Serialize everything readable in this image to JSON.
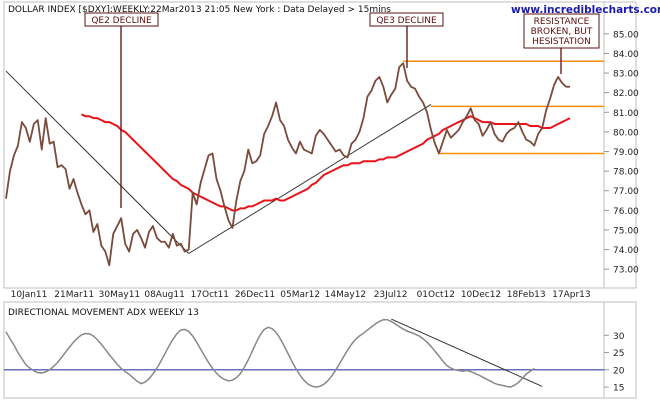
{
  "header": {
    "title": "DOLLAR INDEX [$DXY]:WEEKLY:22Mar2013 21:05 New York : Data Delayed > 15mins",
    "brand": "www.incrediblecharts.com"
  },
  "lower_panel": {
    "title": "DIRECTIONAL MOVEMENT ADX WEEKLY 13"
  },
  "annotations": {
    "qe2": "QE2 DECLINE",
    "qe3": "QE3 DECLINE",
    "resistance": [
      "RESISTANCE",
      "BROKEN, BUT",
      "HESISTATION"
    ]
  },
  "colors": {
    "price": "#7a4a3a",
    "ma": "#e8141a",
    "trendline": "#333333",
    "horizontal": "#ff8c00",
    "adx": "#888888",
    "adx_ref": "#3f3fa0",
    "annotation": "#5a1010"
  },
  "chart_data": [
    {
      "type": "line",
      "title": "DOLLAR INDEX [$DXY]:WEEKLY:22Mar2013 21:05 New York : Data Delayed > 15mins",
      "x_unit": "week",
      "x_ticks": [
        "10Jan11",
        "21Mar11",
        "30May11",
        "08Aug11",
        "17Oct11",
        "26Dec11",
        "05Mar12",
        "14May12",
        "23Jul12",
        "01Oct12",
        "10Dec12",
        "18Feb13",
        "17Apr13"
      ],
      "y_ticks": [
        73.0,
        74.0,
        75.0,
        76.0,
        77.0,
        78.0,
        79.0,
        80.0,
        81.0,
        82.0,
        83.0,
        84.0,
        85.0
      ],
      "ylim": [
        72.5,
        85.5
      ],
      "series": [
        {
          "values": [
            76.6,
            78.0,
            78.8,
            79.3,
            80.5,
            80.2,
            79.5,
            80.4,
            80.6,
            79.1,
            80.7,
            79.4,
            79.5,
            78.2,
            78.3,
            78.1,
            77.1,
            77.6,
            76.9,
            76.3,
            75.8,
            76.0,
            74.9,
            75.3,
            74.2,
            73.9,
            73.2,
            74.8,
            75.2,
            75.6,
            74.3,
            73.9,
            74.8,
            75.0,
            74.6,
            74.1,
            74.9,
            75.2,
            74.6,
            74.4,
            74.4,
            74.1,
            74.8,
            74.2,
            74.3,
            73.9,
            74.0,
            76.9,
            76.3,
            77.4,
            78.1,
            78.8,
            78.9,
            77.6,
            77.0,
            76.2,
            75.5,
            75.1,
            76.5,
            77.5,
            78.0,
            79.1,
            78.4,
            78.5,
            78.8,
            79.9,
            80.3,
            80.8,
            81.5,
            80.6,
            80.3,
            79.6,
            79.2,
            78.9,
            79.5,
            79.1,
            79.0,
            78.9,
            79.8,
            80.1,
            79.9,
            79.6,
            79.3,
            79.0,
            79.1,
            78.8,
            78.7,
            79.4,
            79.6,
            80.0,
            80.7,
            81.8,
            82.1,
            82.6,
            82.8,
            82.3,
            81.5,
            81.9,
            82.2,
            83.3,
            83.5,
            82.6,
            82.3,
            82.2,
            81.8,
            81.5,
            81.0,
            80.1,
            79.4,
            78.9,
            79.5,
            80.1,
            79.7,
            79.9,
            80.1,
            80.5,
            80.8,
            81.2,
            80.6,
            80.4,
            79.8,
            80.1,
            80.5,
            79.9,
            79.6,
            79.5,
            79.9,
            80.1,
            80.2,
            80.5,
            80.0,
            79.6,
            79.5,
            79.3,
            79.9,
            80.2,
            81.1,
            81.7,
            82.4,
            82.8,
            82.5,
            82.3,
            82.3
          ]
        },
        {
          "values": [
            80.9,
            80.8,
            80.8,
            80.7,
            80.7,
            80.6,
            80.5,
            80.5,
            80.4,
            80.3,
            80.1,
            80.0,
            79.8,
            79.6,
            79.4,
            79.2,
            79.0,
            78.8,
            78.6,
            78.4,
            78.2,
            78.0,
            77.8,
            77.6,
            77.5,
            77.3,
            77.2,
            77.1,
            76.9,
            76.8,
            76.7,
            76.6,
            76.5,
            76.4,
            76.3,
            76.2,
            76.2,
            76.1,
            76.0,
            76.0,
            76.1,
            76.1,
            76.2,
            76.2,
            76.3,
            76.4,
            76.5,
            76.5,
            76.5,
            76.6,
            76.5,
            76.5,
            76.6,
            76.7,
            76.8,
            76.9,
            77.0,
            77.1,
            77.3,
            77.4,
            77.6,
            77.8,
            77.9,
            78.0,
            78.1,
            78.2,
            78.3,
            78.3,
            78.4,
            78.4,
            78.4,
            78.5,
            78.5,
            78.5,
            78.5,
            78.6,
            78.6,
            78.7,
            78.7,
            78.7,
            78.8,
            78.9,
            79.0,
            79.1,
            79.2,
            79.3,
            79.4,
            79.6,
            79.7,
            79.8,
            79.9,
            80.1,
            80.2,
            80.3,
            80.4,
            80.5,
            80.6,
            80.7,
            80.8,
            80.7,
            80.6,
            80.5,
            80.5,
            80.5,
            80.4,
            80.4,
            80.4,
            80.4,
            80.4,
            80.4,
            80.4,
            80.4,
            80.4,
            80.3,
            80.3,
            80.3,
            80.2,
            80.2,
            80.2,
            80.3,
            80.4,
            80.5,
            80.6,
            80.7
          ]
        }
      ],
      "horizontal_levels": [
        83.6,
        81.3,
        78.9
      ],
      "trendlines": [
        {
          "from": [
            0,
            83.1
          ],
          "to": [
            46,
            73.8
          ]
        },
        {
          "from": [
            46,
            73.8
          ],
          "to": [
            107,
            81.4
          ]
        },
        {
          "from": [
            100,
            83.6
          ],
          "to": [
            147,
            83.6
          ]
        },
        {
          "from": [
            107,
            81.3
          ],
          "to": [
            147,
            81.3
          ]
        },
        {
          "from": [
            109,
            78.9
          ],
          "to": [
            147,
            78.9
          ]
        }
      ]
    },
    {
      "type": "line",
      "title": "DIRECTIONAL MOVEMENT ADX WEEKLY 13",
      "y_ticks": [
        15,
        20,
        25,
        30
      ],
      "ylim": [
        13,
        35
      ],
      "reference_level": 20,
      "series": [
        {
          "values": [
            31.0,
            29.0,
            27.2,
            25.0,
            23.2,
            21.5,
            20.5,
            19.7,
            19.2,
            19.1,
            19.4,
            20.0,
            21.0,
            22.2,
            23.6,
            25.1,
            26.6,
            28.0,
            29.2,
            30.1,
            30.5,
            30.4,
            29.8,
            28.7,
            27.4,
            25.9,
            24.4,
            23.0,
            21.6,
            20.4,
            19.5,
            18.7,
            17.7,
            16.7,
            16.0,
            16.4,
            17.4,
            18.8,
            20.5,
            22.5,
            24.6,
            26.8,
            28.8,
            30.4,
            31.5,
            31.7,
            31.1,
            29.8,
            28.0,
            26.0,
            24.0,
            22.1,
            20.4,
            19.0,
            17.9,
            17.2,
            16.8,
            17.0,
            17.7,
            18.9,
            20.7,
            22.9,
            25.4,
            27.9,
            30.1,
            31.7,
            32.3,
            31.9,
            30.8,
            29.1,
            27.0,
            24.7,
            22.4,
            20.3,
            18.5,
            17.0,
            15.9,
            15.3,
            15.0,
            15.2,
            15.8,
            16.8,
            18.2,
            19.9,
            21.8,
            23.8,
            25.7,
            27.4,
            28.8,
            29.8,
            30.6,
            31.5,
            32.4,
            33.3,
            34.0,
            34.5,
            34.5,
            34.0,
            33.3,
            32.5,
            31.8,
            31.2,
            30.8,
            30.3,
            29.8,
            29.0,
            28.0,
            26.8,
            25.4,
            24.0,
            22.5,
            21.2,
            20.5,
            20.0,
            19.8,
            19.6,
            19.8,
            19.5,
            19.0,
            18.5,
            17.9,
            17.3,
            16.7,
            16.1,
            15.7,
            15.5,
            15.2,
            15.0,
            15.5,
            16.3,
            17.5,
            18.8,
            19.6,
            20.4
          ]
        }
      ],
      "trendlines": [
        {
          "from": [
            97,
            34.7
          ],
          "to": [
            135,
            15.2
          ]
        }
      ]
    }
  ]
}
